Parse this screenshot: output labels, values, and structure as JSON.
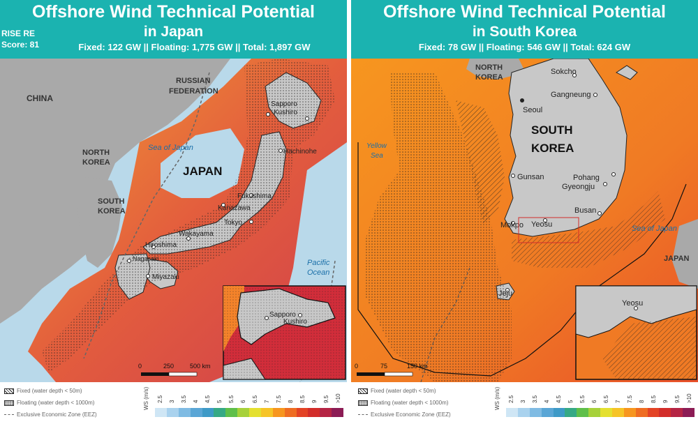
{
  "japan": {
    "title_line1": "Offshore Wind Technical Potential",
    "title_line2": "in Japan",
    "rise_line1": "RISE RE",
    "rise_line2": "Score: 81",
    "capacity": "Fixed: 122 GW  || Floating: 1,775 GW  || Total: 1,897 GW",
    "labels": {
      "china": "CHINA",
      "russia1": "RUSSIAN",
      "russia2": "FEDERATION",
      "nkorea1": "NORTH",
      "nkorea2": "KOREA",
      "skorea1": "SOUTH",
      "skorea2": "KOREA",
      "sea": "Sea of Japan",
      "country": "JAPAN",
      "ocean1": "Pacific",
      "ocean2": "Ocean"
    },
    "cities": [
      "Sapporo",
      "Kushiro",
      "Hachinohe",
      "Fukushima",
      "Kanazawa",
      "Tokyo",
      "Wakayama",
      "Hiroshima",
      "Nagasaki",
      "Miyazaki"
    ],
    "inset_cities": [
      "Sapporo",
      "Kushiro"
    ],
    "scale": [
      "0",
      "250",
      "500 km"
    ]
  },
  "korea": {
    "title_line1": "Offshore Wind Technical Potential",
    "title_line2": "in South Korea",
    "capacity": "Fixed: 78 GW  || Floating: 546 GW  || Total: 624 GW",
    "labels": {
      "nkorea1": "NORTH",
      "nkorea2": "KOREA",
      "country1": "SOUTH",
      "country2": "KOREA",
      "yellow1": "Yellow",
      "yellow2": "Sea",
      "sea": "Sea of Japan",
      "japan": "JAPAN"
    },
    "cities": [
      "Sokcho",
      "Gangneung",
      "Seoul",
      "Gunsan",
      "Pohang",
      "Gyeongju",
      "Busan",
      "Mokpo",
      "Yeosu",
      "Jeju"
    ],
    "inset_cities": [
      "Yeosu"
    ],
    "scale": [
      "0",
      "75",
      "150 km"
    ]
  },
  "legend": {
    "fixed": "Fixed (water depth < 50m)",
    "floating": "Floating (water depth < 1000m)",
    "eez": "Exclusive Economic Zone (EEZ)",
    "ws_label": "WS (m/s)",
    "ticks": [
      "2.5",
      "3",
      "3.5",
      "4",
      "4.5",
      "5",
      "5.5",
      "6",
      "6.5",
      "7",
      "7.5",
      "8",
      "8.5",
      "9",
      "9.5",
      ">10"
    ],
    "colors": [
      "#cfe6f5",
      "#a9d2ee",
      "#7fbbe3",
      "#5aa6d6",
      "#3e9ac7",
      "#36a985",
      "#5fbf4a",
      "#a6d13a",
      "#e4e030",
      "#f6c427",
      "#f7961f",
      "#ef6d22",
      "#e34325",
      "#d22d2a",
      "#b52444",
      "#8c1c55"
    ]
  },
  "colors": {
    "header": "#1bb3b0",
    "land": "#c8c8c8",
    "water_light": "#a8d2e8",
    "wind_high": "#e8502a",
    "wind_mid": "#f5832a"
  }
}
